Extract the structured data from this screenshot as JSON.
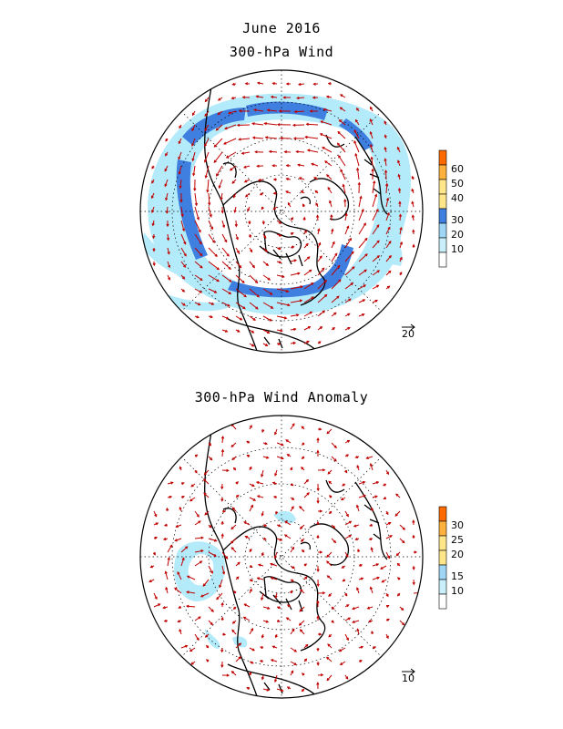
{
  "header": {
    "title": "June 2016",
    "panel1_title": "300-hPa Wind",
    "panel2_title": "300-hPa Wind Anomaly"
  },
  "panel1": {
    "colorbar": {
      "labels": [
        "60",
        "50",
        "40",
        "30",
        "20",
        "10"
      ],
      "colors": [
        "#ff6a00",
        "#ffb13d",
        "#ffe68a",
        "#3f7fe0",
        "#9fd6f5",
        "#c9f0fa",
        "#ffffff"
      ]
    },
    "reference_vector": "20"
  },
  "panel2": {
    "colorbar": {
      "labels": [
        "30",
        "25",
        "20",
        "15",
        "10"
      ],
      "colors": [
        "#ff6a00",
        "#ffb13d",
        "#ffe68a",
        "#9fd6f5",
        "#c9f0fa",
        "#ffffff"
      ]
    },
    "reference_vector": "10"
  },
  "colors": {
    "jet_core": "#3f7fe0",
    "jet_outer": "#b3ebfb",
    "arrow": "#c00000",
    "coast": "#000000"
  }
}
